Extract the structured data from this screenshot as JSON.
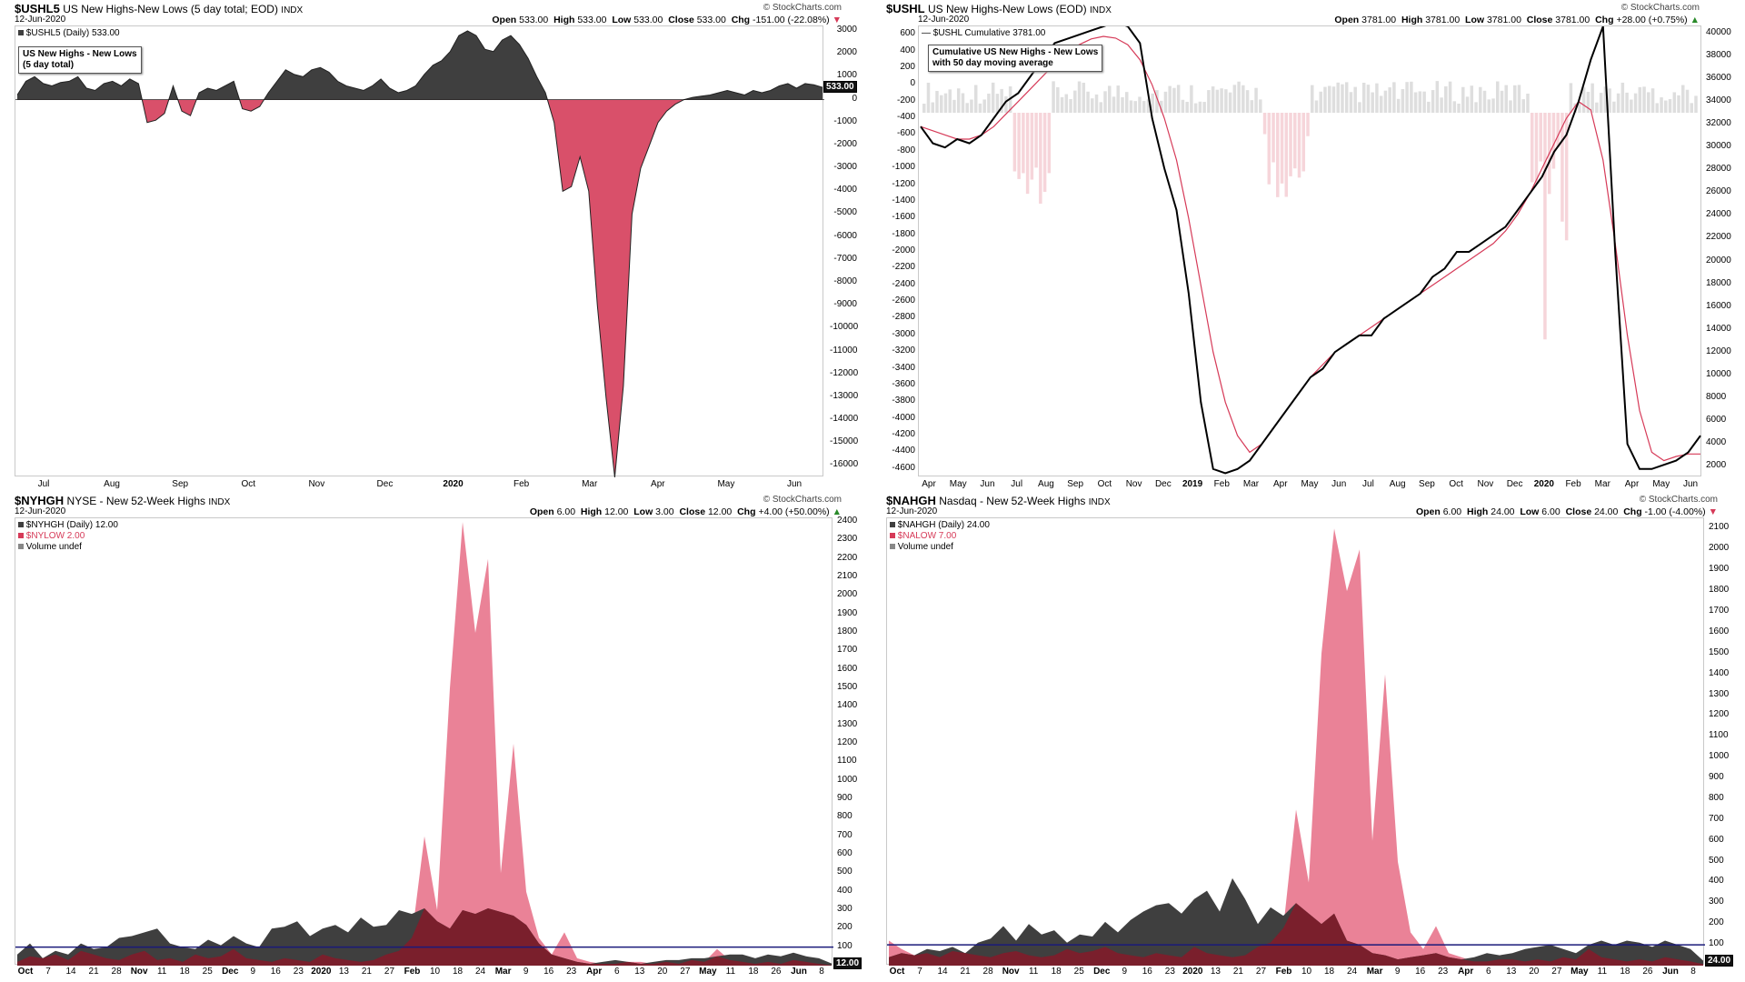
{
  "colors": {
    "dark": "#3f3f3f",
    "red": "#d9506a",
    "pink": "#e8748c",
    "maroon": "#7a1f2c",
    "navy": "#1a1a7a",
    "lightpink": "#f6d5da",
    "lightgray": "#dedede",
    "mared": "#d63a58"
  },
  "watermark": "© StockCharts.com",
  "date": "12-Jun-2020",
  "p1": {
    "symbol": "$USHL5",
    "title": "US New Highs-New Lows (5 day total; EOD)",
    "extra": "INDX",
    "ohlc": {
      "open_l": "Open",
      "open": "533.00",
      "high_l": "High",
      "high": "533.00",
      "low_l": "Low",
      "low": "533.00",
      "close_l": "Close",
      "close": "533.00",
      "chg_l": "Chg",
      "chg": "-151.00 (-22.08%)"
    },
    "legend": "$USHL5 (Daily) 533.00",
    "note": [
      "US New Highs - New Lows",
      "(5 day total)"
    ],
    "last": "533.00",
    "yticks": [
      "3000",
      "2000",
      "1000",
      "0",
      "-1000",
      "-2000",
      "-3000",
      "-4000",
      "-5000",
      "-6000",
      "-7000",
      "-8000",
      "-9000",
      "-10000",
      "-11000",
      "-12000",
      "-13000",
      "-14000",
      "-15000",
      "-16000"
    ],
    "xticks": [
      {
        "t": "Jul",
        "b": false
      },
      {
        "t": "Aug",
        "b": false
      },
      {
        "t": "Sep",
        "b": false
      },
      {
        "t": "Oct",
        "b": false
      },
      {
        "t": "Nov",
        "b": false
      },
      {
        "t": "Dec",
        "b": false
      },
      {
        "t": "2020",
        "b": true
      },
      {
        "t": "Feb",
        "b": false
      },
      {
        "t": "Mar",
        "b": false
      },
      {
        "t": "Apr",
        "b": false
      },
      {
        "t": "May",
        "b": false
      },
      {
        "t": "Jun",
        "b": false
      }
    ]
  },
  "p2": {
    "symbol": "$USHL",
    "title": "US New Highs-New Lows (EOD)",
    "extra": "INDX",
    "ohlc": {
      "open_l": "Open",
      "open": "3781.00",
      "high_l": "High",
      "high": "3781.00",
      "low_l": "Low",
      "low": "3781.00",
      "close_l": "Close",
      "close": "3781.00",
      "chg_l": "Chg",
      "chg": "+28.00 (+0.75%)"
    },
    "legend": "— $USHL Cumulative 3781.00",
    "note": [
      "Cumulative US New Highs - New Lows",
      "with 50 day moving average"
    ],
    "yticks_left": [
      "600",
      "400",
      "200",
      "0",
      "-200",
      "-400",
      "-600",
      "-800",
      "-1000",
      "-1200",
      "-1400",
      "-1600",
      "-1800",
      "-2000",
      "-2200",
      "-2400",
      "-2600",
      "-2800",
      "-3000",
      "-3200",
      "-3400",
      "-3600",
      "-3800",
      "-4000",
      "-4200",
      "-4400",
      "-4600"
    ],
    "yticks_right": [
      "40000",
      "38000",
      "36000",
      "34000",
      "32000",
      "30000",
      "28000",
      "26000",
      "24000",
      "22000",
      "20000",
      "18000",
      "16000",
      "14000",
      "12000",
      "10000",
      "8000",
      "6000",
      "4000",
      "2000"
    ],
    "xticks": [
      {
        "t": "Apr",
        "b": false
      },
      {
        "t": "May",
        "b": false
      },
      {
        "t": "Jun",
        "b": false
      },
      {
        "t": "Jul",
        "b": false
      },
      {
        "t": "Aug",
        "b": false
      },
      {
        "t": "Sep",
        "b": false
      },
      {
        "t": "Oct",
        "b": false
      },
      {
        "t": "Nov",
        "b": false
      },
      {
        "t": "Dec",
        "b": false
      },
      {
        "t": "2019",
        "b": true
      },
      {
        "t": "Feb",
        "b": false
      },
      {
        "t": "Mar",
        "b": false
      },
      {
        "t": "Apr",
        "b": false
      },
      {
        "t": "May",
        "b": false
      },
      {
        "t": "Jun",
        "b": false
      },
      {
        "t": "Jul",
        "b": false
      },
      {
        "t": "Aug",
        "b": false
      },
      {
        "t": "Sep",
        "b": false
      },
      {
        "t": "Oct",
        "b": false
      },
      {
        "t": "Nov",
        "b": false
      },
      {
        "t": "Dec",
        "b": false
      },
      {
        "t": "2020",
        "b": true
      },
      {
        "t": "Feb",
        "b": false
      },
      {
        "t": "Mar",
        "b": false
      },
      {
        "t": "Apr",
        "b": false
      },
      {
        "t": "May",
        "b": false
      },
      {
        "t": "Jun",
        "b": false
      }
    ]
  },
  "p3": {
    "symbol": "$NYHGH",
    "title": "NYSE - New 52-Week Highs",
    "extra": "INDX",
    "ohlc": {
      "open_l": "Open",
      "open": "6.00",
      "high_l": "High",
      "high": "12.00",
      "low_l": "Low",
      "low": "3.00",
      "close_l": "Close",
      "close": "12.00",
      "chg_l": "Chg",
      "chg": "+4.00 (+50.00%)"
    },
    "legend": [
      "$NYHGH (Daily) 12.00",
      "$NYLOW 2.00",
      "Volume undef"
    ],
    "last": "12.00",
    "yticks": [
      "2400",
      "2300",
      "2200",
      "2100",
      "2000",
      "1900",
      "1800",
      "1700",
      "1600",
      "1500",
      "1400",
      "1300",
      "1200",
      "1100",
      "1000",
      "900",
      "800",
      "700",
      "600",
      "500",
      "400",
      "300",
      "200",
      "100"
    ],
    "xticks": [
      {
        "t": "Oct",
        "b": true
      },
      {
        "t": "7",
        "b": false
      },
      {
        "t": "14",
        "b": false
      },
      {
        "t": "21",
        "b": false
      },
      {
        "t": "28",
        "b": false
      },
      {
        "t": "Nov",
        "b": true
      },
      {
        "t": "11",
        "b": false
      },
      {
        "t": "18",
        "b": false
      },
      {
        "t": "25",
        "b": false
      },
      {
        "t": "Dec",
        "b": true
      },
      {
        "t": "9",
        "b": false
      },
      {
        "t": "16",
        "b": false
      },
      {
        "t": "23",
        "b": false
      },
      {
        "t": "2020",
        "b": true
      },
      {
        "t": "13",
        "b": false
      },
      {
        "t": "21",
        "b": false
      },
      {
        "t": "27",
        "b": false
      },
      {
        "t": "Feb",
        "b": true
      },
      {
        "t": "10",
        "b": false
      },
      {
        "t": "18",
        "b": false
      },
      {
        "t": "24",
        "b": false
      },
      {
        "t": "Mar",
        "b": true
      },
      {
        "t": "9",
        "b": false
      },
      {
        "t": "16",
        "b": false
      },
      {
        "t": "23",
        "b": false
      },
      {
        "t": "Apr",
        "b": true
      },
      {
        "t": "6",
        "b": false
      },
      {
        "t": "13",
        "b": false
      },
      {
        "t": "20",
        "b": false
      },
      {
        "t": "27",
        "b": false
      },
      {
        "t": "May",
        "b": true
      },
      {
        "t": "11",
        "b": false
      },
      {
        "t": "18",
        "b": false
      },
      {
        "t": "26",
        "b": false
      },
      {
        "t": "Jun",
        "b": true
      },
      {
        "t": "8",
        "b": false
      }
    ]
  },
  "p4": {
    "symbol": "$NAHGH",
    "title": "Nasdaq - New 52-Week Highs",
    "extra": "INDX",
    "ohlc": {
      "open_l": "Open",
      "open": "6.00",
      "high_l": "High",
      "high": "24.00",
      "low_l": "Low",
      "low": "6.00",
      "close_l": "Close",
      "close": "24.00",
      "chg_l": "Chg",
      "chg": "-1.00 (-4.00%)"
    },
    "legend": [
      "$NAHGH (Daily) 24.00",
      "$NALOW 7.00",
      "Volume undef"
    ],
    "last": "24.00",
    "yticks": [
      "2100",
      "2000",
      "1900",
      "1800",
      "1700",
      "1600",
      "1500",
      "1400",
      "1300",
      "1200",
      "1100",
      "1000",
      "900",
      "800",
      "700",
      "600",
      "500",
      "400",
      "300",
      "200",
      "100"
    ],
    "xticks": [
      {
        "t": "Oct",
        "b": true
      },
      {
        "t": "7",
        "b": false
      },
      {
        "t": "14",
        "b": false
      },
      {
        "t": "21",
        "b": false
      },
      {
        "t": "28",
        "b": false
      },
      {
        "t": "Nov",
        "b": true
      },
      {
        "t": "11",
        "b": false
      },
      {
        "t": "18",
        "b": false
      },
      {
        "t": "25",
        "b": false
      },
      {
        "t": "Dec",
        "b": true
      },
      {
        "t": "9",
        "b": false
      },
      {
        "t": "16",
        "b": false
      },
      {
        "t": "23",
        "b": false
      },
      {
        "t": "2020",
        "b": true
      },
      {
        "t": "13",
        "b": false
      },
      {
        "t": "21",
        "b": false
      },
      {
        "t": "27",
        "b": false
      },
      {
        "t": "Feb",
        "b": true
      },
      {
        "t": "10",
        "b": false
      },
      {
        "t": "18",
        "b": false
      },
      {
        "t": "24",
        "b": false
      },
      {
        "t": "Mar",
        "b": true
      },
      {
        "t": "9",
        "b": false
      },
      {
        "t": "16",
        "b": false
      },
      {
        "t": "23",
        "b": false
      },
      {
        "t": "Apr",
        "b": true
      },
      {
        "t": "6",
        "b": false
      },
      {
        "t": "13",
        "b": false
      },
      {
        "t": "20",
        "b": false
      },
      {
        "t": "27",
        "b": false
      },
      {
        "t": "May",
        "b": true
      },
      {
        "t": "11",
        "b": false
      },
      {
        "t": "18",
        "b": false
      },
      {
        "t": "26",
        "b": false
      },
      {
        "t": "Jun",
        "b": true
      },
      {
        "t": "8",
        "b": false
      }
    ]
  },
  "chart_data": [
    {
      "type": "area",
      "title": "US New Highs - New Lows (5 day total)",
      "series": [
        {
          "name": "$USHL5",
          "values": [
            200,
            800,
            1000,
            700,
            600,
            750,
            800,
            1000,
            500,
            400,
            700,
            800,
            600,
            900,
            700,
            -1000,
            -900,
            -600,
            600,
            -500,
            -700,
            300,
            500,
            400,
            600,
            800,
            -400,
            -500,
            -300,
            300,
            800,
            1300,
            1100,
            1000,
            1300,
            1400,
            1200,
            800,
            600,
            500,
            400,
            600,
            900,
            500,
            300,
            400,
            600,
            1100,
            1500,
            1700,
            2100,
            2800,
            3000,
            2800,
            2200,
            2100,
            2600,
            2800,
            2400,
            1800,
            1000,
            300,
            -1000,
            -4000,
            -3800,
            -2500,
            -4000,
            -9000,
            -13000,
            -16500,
            -12500,
            -5000,
            -3000,
            -2000,
            -1000,
            -500,
            -200,
            0,
            100,
            150,
            200,
            300,
            400,
            300,
            200,
            400,
            300,
            400,
            600,
            700,
            500,
            700,
            650,
            533
          ]
        }
      ],
      "ylim": [
        -16500,
        3200
      ]
    },
    {
      "type": "line",
      "title": "Cumulative US New Highs - New Lows with 50 day moving average",
      "series": [
        {
          "name": "$USHL Cumulative",
          "values": [
            -500,
            -700,
            -750,
            -650,
            -700,
            -600,
            -400,
            -200,
            -100,
            100,
            300,
            500,
            550,
            600,
            650,
            700,
            750,
            700,
            500,
            -400,
            -1000,
            -1500,
            -2500,
            -3800,
            -4600,
            -4650,
            -4600,
            -4500,
            -4300,
            -4100,
            -3900,
            -3700,
            -3500,
            -3400,
            -3200,
            -3100,
            -3000,
            -3000,
            -2800,
            -2700,
            -2600,
            -2500,
            -2300,
            -2200,
            -2000,
            -2000,
            -1900,
            -1800,
            -1700,
            -1500,
            -1300,
            -1100,
            -800,
            -600,
            -200,
            300,
            700,
            -2000,
            -4300,
            -4600,
            -4600,
            -4550,
            -4500,
            -4400,
            -4200
          ]
        },
        {
          "name": "50 day moving average",
          "values": [
            -500,
            -550,
            -600,
            -650,
            -650,
            -600,
            -500,
            -350,
            -200,
            -50,
            100,
            250,
            380,
            480,
            550,
            580,
            560,
            480,
            300,
            0,
            -400,
            -900,
            -1600,
            -2400,
            -3200,
            -3800,
            -4200,
            -4400,
            -4300,
            -4100,
            -3900,
            -3700,
            -3500,
            -3350,
            -3200,
            -3100,
            -3000,
            -2900,
            -2800,
            -2700,
            -2600,
            -2500,
            -2400,
            -2300,
            -2200,
            -2100,
            -2000,
            -1900,
            -1750,
            -1550,
            -1300,
            -1000,
            -700,
            -400,
            -200,
            -300,
            -900,
            -1900,
            -3000,
            -3900,
            -4400,
            -4500,
            -4450,
            -4420,
            -4420
          ]
        }
      ],
      "ylim": [
        -4700,
        700
      ]
    },
    {
      "type": "area",
      "title": "NYSE - New 52-Week Highs",
      "series": [
        {
          "name": "$NYHGH",
          "values": [
            60,
            120,
            40,
            80,
            60,
            120,
            90,
            100,
            150,
            160,
            180,
            200,
            120,
            100,
            90,
            140,
            110,
            160,
            120,
            100,
            200,
            210,
            240,
            160,
            200,
            220,
            180,
            260,
            210,
            220,
            300,
            280,
            310,
            240,
            200,
            300,
            280,
            310,
            290,
            270,
            220,
            120,
            60,
            40,
            20,
            10,
            20,
            30,
            20,
            10,
            20,
            30,
            30,
            40,
            40,
            50,
            60,
            60,
            40,
            60,
            50,
            70,
            50,
            40,
            12
          ]
        },
        {
          "name": "$NYLOW",
          "values": [
            20,
            50,
            40,
            60,
            30,
            80,
            60,
            40,
            30,
            60,
            80,
            30,
            40,
            20,
            60,
            40,
            50,
            90,
            40,
            30,
            20,
            40,
            30,
            20,
            60,
            40,
            30,
            20,
            30,
            60,
            80,
            150,
            700,
            300,
            1500,
            2400,
            1800,
            2200,
            500,
            1200,
            400,
            150,
            60,
            180,
            40,
            20,
            10,
            10,
            20,
            20,
            10,
            20,
            10,
            30,
            20,
            90,
            30,
            20,
            10,
            20,
            10,
            30,
            20,
            10,
            2
          ]
        }
      ],
      "ylim": [
        0,
        2420
      ]
    },
    {
      "type": "area",
      "title": "Nasdaq - New 52-Week Highs",
      "series": [
        {
          "name": "$NAHGH",
          "values": [
            40,
            60,
            50,
            80,
            70,
            90,
            60,
            110,
            130,
            190,
            120,
            200,
            150,
            170,
            110,
            150,
            140,
            210,
            160,
            220,
            260,
            290,
            300,
            250,
            320,
            360,
            260,
            420,
            320,
            200,
            280,
            240,
            300,
            250,
            200,
            250,
            120,
            100,
            60,
            50,
            30,
            40,
            50,
            60,
            40,
            30,
            40,
            60,
            50,
            60,
            80,
            90,
            100,
            80,
            60,
            100,
            120,
            100,
            120,
            110,
            90,
            120,
            100,
            80,
            24
          ]
        },
        {
          "name": "$NALOW",
          "values": [
            120,
            80,
            50,
            60,
            40,
            70,
            60,
            50,
            40,
            60,
            70,
            50,
            40,
            50,
            80,
            60,
            70,
            90,
            60,
            50,
            40,
            60,
            50,
            40,
            90,
            60,
            50,
            40,
            50,
            90,
            110,
            180,
            750,
            400,
            1500,
            2100,
            1800,
            2000,
            600,
            1400,
            500,
            160,
            80,
            190,
            60,
            40,
            20,
            20,
            30,
            30,
            20,
            30,
            20,
            40,
            30,
            80,
            40,
            30,
            20,
            30,
            20,
            40,
            30,
            20,
            7
          ]
        }
      ],
      "ylim": [
        0,
        2150
      ]
    }
  ]
}
